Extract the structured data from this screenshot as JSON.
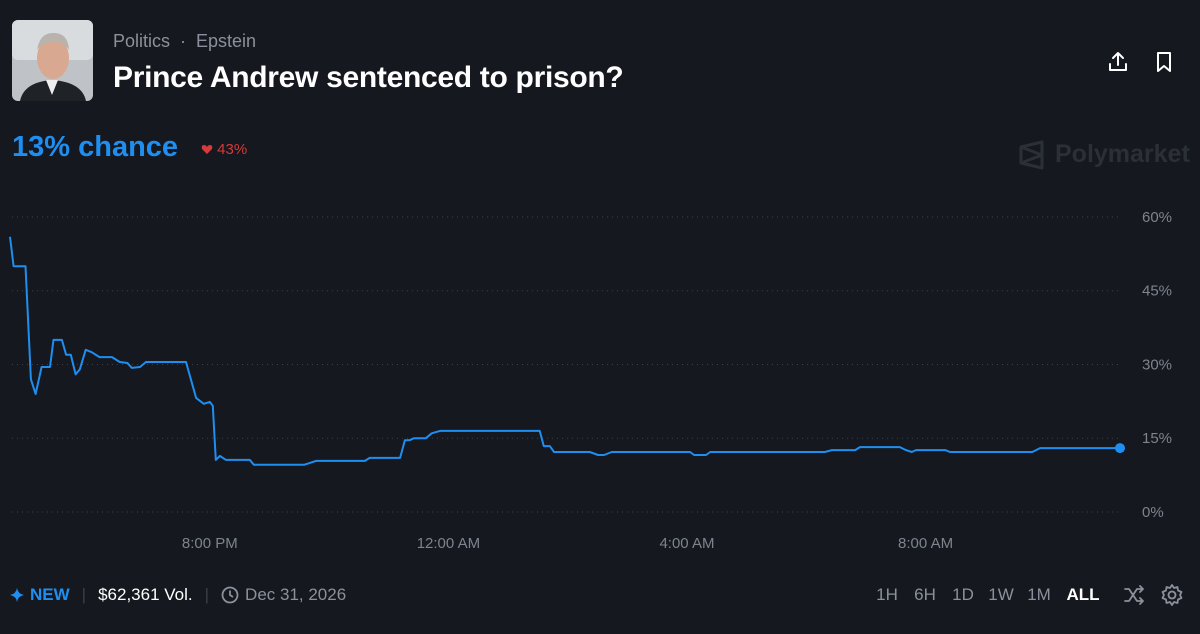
{
  "header": {
    "breadcrumb": [
      "Politics",
      "Epstein"
    ],
    "title": "Prince Andrew sentenced to prison?"
  },
  "chance": {
    "headline": "13% chance",
    "change": "43%"
  },
  "brand": "Polymarket",
  "chart_data": {
    "type": "line",
    "color": "#1f8ef1",
    "x": [
      16.65,
      16.71,
      16.91,
      17.0,
      17.08,
      17.18,
      17.32,
      17.38,
      17.52,
      17.59,
      17.67,
      17.75,
      17.82,
      17.92,
      18.02,
      18.15,
      18.36,
      18.49,
      18.62,
      18.69,
      18.83,
      18.93,
      19.6,
      19.77,
      19.9,
      20.0,
      20.05,
      20.1,
      20.17,
      20.27,
      20.67,
      20.74,
      21.58,
      21.78,
      22.6,
      22.68,
      23.19,
      23.27,
      23.35,
      23.42,
      23.62,
      23.72,
      23.86,
      25.53,
      25.6,
      25.7,
      25.77,
      26.37,
      26.51,
      26.61,
      26.74,
      28.05,
      28.12,
      28.32,
      28.39,
      30.31,
      30.43,
      30.82,
      30.9,
      31.57,
      31.67,
      31.77,
      31.84,
      32.33,
      32.41,
      33.79,
      33.92,
      35.26
    ],
    "values": [
      56,
      50,
      50,
      27,
      24,
      29.5,
      29.5,
      35,
      35,
      32,
      32,
      28,
      29,
      33,
      32.5,
      31.5,
      31.5,
      30.5,
      30.3,
      29.3,
      29.5,
      30.5,
      30.5,
      23.2,
      22,
      22.4,
      21.6,
      10.6,
      11.4,
      10.6,
      10.6,
      9.6,
      9.6,
      10.4,
      10.4,
      11,
      11,
      14.6,
      14.6,
      15,
      15,
      16,
      16.5,
      16.5,
      13.4,
      13.4,
      12.2,
      12.2,
      11.6,
      11.6,
      12.2,
      12.2,
      11.6,
      11.6,
      12.2,
      12.2,
      12.6,
      12.6,
      13.2,
      13.2,
      12.6,
      12.2,
      12.6,
      12.6,
      12.2,
      12.2,
      13,
      13
    ],
    "xlim": [
      16.65,
      35.26
    ],
    "ylim": [
      0,
      60
    ],
    "xticks": [
      {
        "value": 20,
        "label": "8:00 PM"
      },
      {
        "value": 24,
        "label": "12:00 AM"
      },
      {
        "value": 28,
        "label": "4:00 AM"
      },
      {
        "value": 32,
        "label": "8:00 AM"
      }
    ],
    "yticks": [
      {
        "value": 0,
        "label": "0%"
      },
      {
        "value": 15,
        "label": "15%"
      },
      {
        "value": 30,
        "label": "30%"
      },
      {
        "value": 45,
        "label": "45%"
      },
      {
        "value": 60,
        "label": "60%"
      }
    ],
    "grid": true
  },
  "footer": {
    "badge": "NEW",
    "volume": "$62,361 Vol.",
    "date": "Dec 31, 2026",
    "ranges": [
      "1H",
      "6H",
      "1D",
      "1W",
      "1M",
      "ALL"
    ],
    "active_range": 5
  }
}
